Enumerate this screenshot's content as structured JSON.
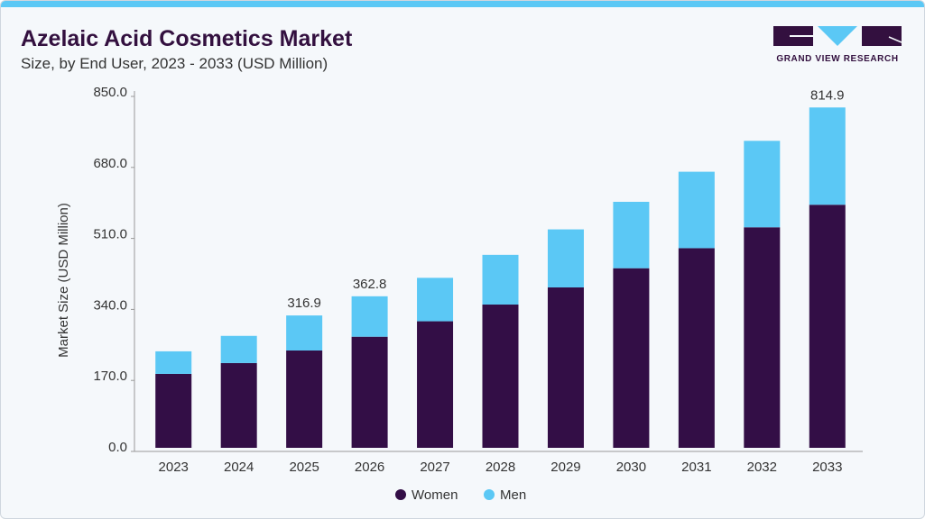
{
  "header": {
    "title": "Azelaic Acid Cosmetics Market",
    "subtitle": "Size, by End User, 2023 - 2033 (USD Million)",
    "logo_text": "GRAND VIEW RESEARCH"
  },
  "chart_data": {
    "type": "bar",
    "stacked": true,
    "categories": [
      "2023",
      "2024",
      "2025",
      "2026",
      "2027",
      "2028",
      "2029",
      "2030",
      "2031",
      "2032",
      "2033"
    ],
    "series": [
      {
        "name": "Women",
        "color": "#330e46",
        "values": [
          177,
          203,
          233,
          266,
          303,
          343,
          384,
          430,
          478,
          528,
          582
        ]
      },
      {
        "name": "Men",
        "color": "#5bc8f5",
        "values": [
          54,
          65,
          83.9,
          96.8,
          104,
          119,
          139,
          159,
          183,
          207,
          232.9
        ]
      }
    ],
    "data_labels": {
      "2025": "316.9",
      "2026": "362.8",
      "2033": "814.9"
    },
    "ylabel": "Market Size (USD Million)",
    "xlabel": "",
    "ylim": [
      0,
      850
    ],
    "yticks": [
      "0.0",
      "170.0",
      "340.0",
      "510.0",
      "680.0",
      "850.0"
    ],
    "grid": false,
    "legend": "bottom"
  }
}
